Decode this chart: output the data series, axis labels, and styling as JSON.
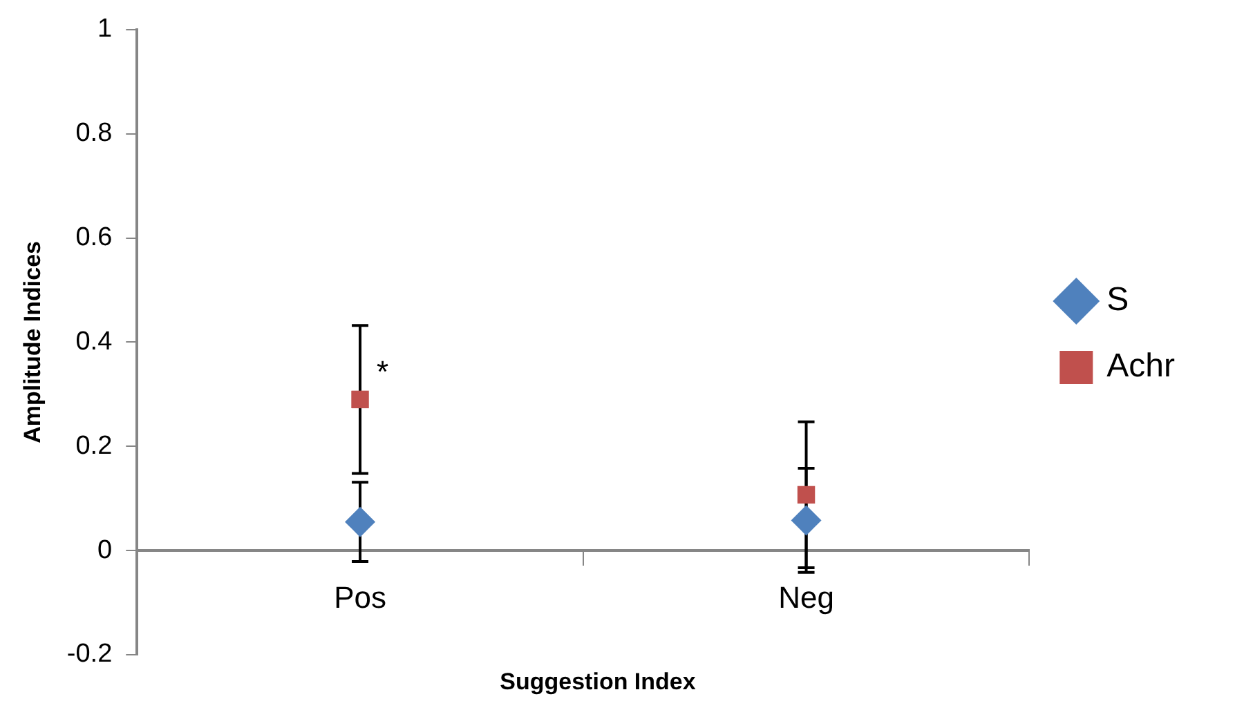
{
  "chart_data": {
    "type": "scatter",
    "xlabel": "Suggestion Index",
    "ylabel": "Amplitude Indices",
    "categories": [
      "Pos",
      "Neg"
    ],
    "series": [
      {
        "name": "S",
        "color": "#4f81bd",
        "marker": "diamond",
        "values": [
          0.055,
          0.058
        ],
        "errors": [
          0.076,
          0.1
        ]
      },
      {
        "name": "Achr",
        "color": "#c0504d",
        "marker": "square",
        "values": [
          0.29,
          0.107
        ],
        "errors": [
          0.142,
          0.14
        ]
      }
    ],
    "ylim": [
      -0.2,
      1
    ],
    "yticks": [
      -0.2,
      0,
      0.2,
      0.4,
      0.6,
      0.8,
      1
    ],
    "grid": false,
    "legend": "right",
    "annotations": [
      {
        "text": "*",
        "x": "Pos",
        "y": 0.34
      }
    ]
  }
}
